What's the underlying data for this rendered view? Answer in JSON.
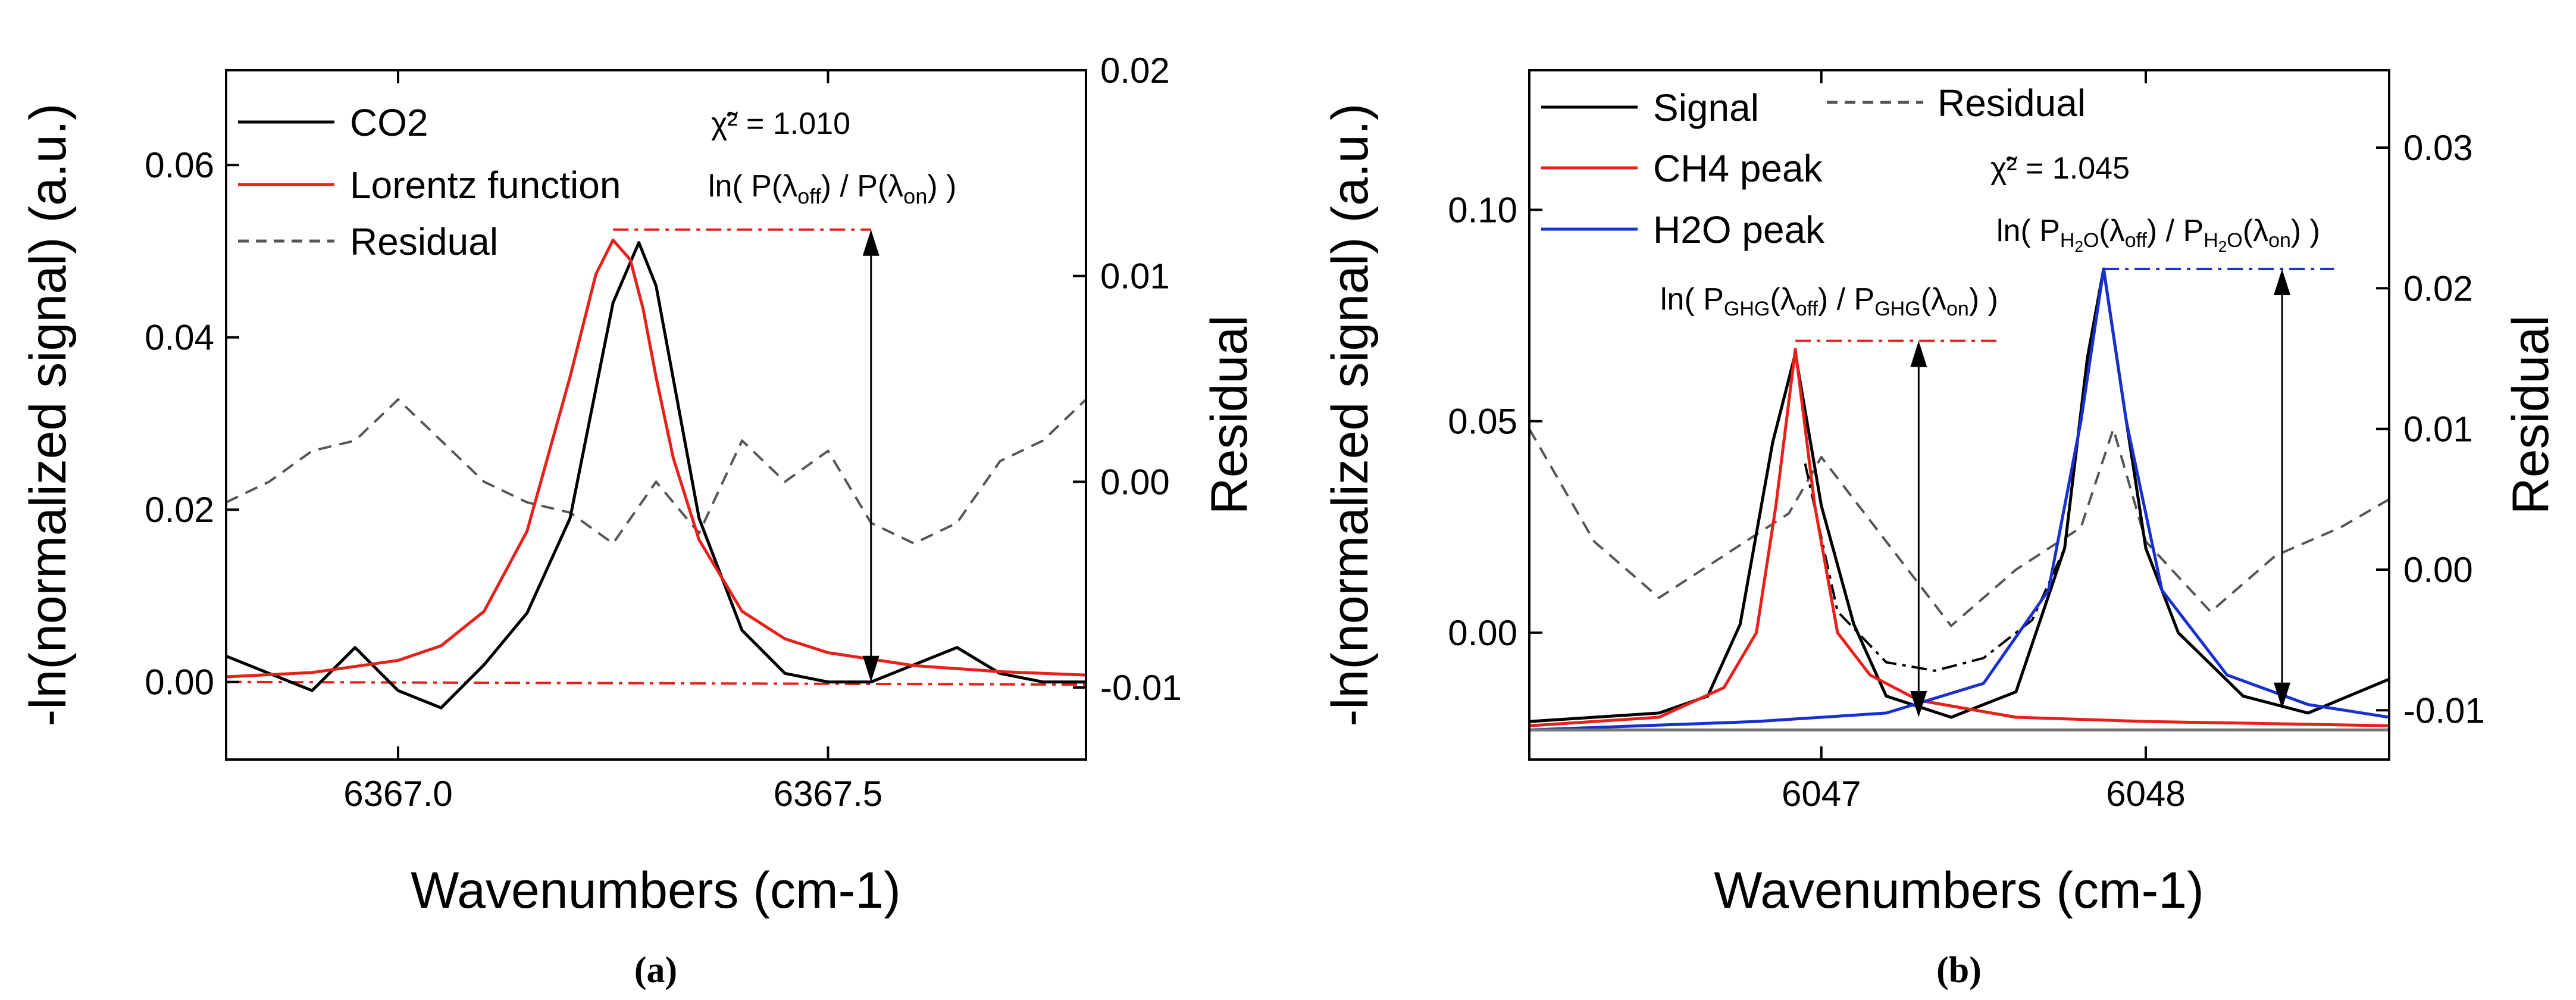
{
  "chart_data": [
    {
      "id": "a",
      "type": "line",
      "caption": "(a)",
      "xlabel": "Wavenumbers (cm-1)",
      "ylabel": "-ln(normalized signal) (a.u.)",
      "y2label": "Residual",
      "xlim": [
        6366.8,
        6367.8
      ],
      "ylim": [
        -0.009,
        0.071
      ],
      "y2lim": [
        -0.0135,
        0.02
      ],
      "xticks": [
        6367.0,
        6367.5
      ],
      "xtick_labels": [
        "6367.0",
        "6367.5"
      ],
      "yticks": [
        0.0,
        0.02,
        0.04,
        0.06
      ],
      "ytick_labels": [
        "0.00",
        "0.02",
        "0.04",
        "0.06"
      ],
      "y2ticks": [
        -0.01,
        0.0,
        0.01,
        0.02
      ],
      "y2tick_labels": [
        "-0.01",
        "0.00",
        "0.01",
        "0.02"
      ],
      "grid": false,
      "legend": [
        "CO2",
        "Lorentz function",
        "Residual"
      ],
      "series": [
        {
          "name": "CO2",
          "color": "#000000",
          "style": "solid",
          "axis": "left",
          "x": [
            6366.8,
            6366.85,
            6366.9,
            6366.95,
            6367.0,
            6367.05,
            6367.1,
            6367.15,
            6367.2,
            6367.25,
            6367.28,
            6367.3,
            6367.35,
            6367.4,
            6367.45,
            6367.5,
            6367.55,
            6367.6,
            6367.65,
            6367.7,
            6367.75,
            6367.8
          ],
          "y": [
            0.003,
            0.001,
            -0.001,
            0.004,
            -0.001,
            -0.003,
            0.002,
            0.008,
            0.019,
            0.044,
            0.051,
            0.046,
            0.019,
            0.006,
            0.001,
            0.0,
            0.0,
            0.002,
            0.004,
            0.001,
            0.0,
            0.0
          ]
        },
        {
          "name": "Lorentz function",
          "color": "#e8201a",
          "style": "solid",
          "axis": "left",
          "x": [
            6366.8,
            6366.9,
            6367.0,
            6367.05,
            6367.1,
            6367.15,
            6367.2,
            6367.23,
            6367.25,
            6367.27,
            6367.285,
            6367.3,
            6367.32,
            6367.35,
            6367.4,
            6367.45,
            6367.5,
            6367.6,
            6367.7,
            6367.8
          ],
          "y": [
            0.0006,
            0.0011,
            0.0025,
            0.0042,
            0.0082,
            0.0175,
            0.0354,
            0.0473,
            0.0513,
            0.049,
            0.0433,
            0.0354,
            0.026,
            0.0165,
            0.0082,
            0.005,
            0.0034,
            0.0019,
            0.0012,
            0.0008
          ]
        },
        {
          "name": "Residual",
          "color": "#555555",
          "style": "dashed",
          "axis": "right",
          "x": [
            6366.8,
            6366.85,
            6366.9,
            6366.95,
            6367.0,
            6367.05,
            6367.1,
            6367.15,
            6367.2,
            6367.25,
            6367.3,
            6367.35,
            6367.4,
            6367.45,
            6367.5,
            6367.55,
            6367.6,
            6367.65,
            6367.7,
            6367.75,
            6367.8
          ],
          "y": [
            -0.001,
            0.0,
            0.0015,
            0.002,
            0.004,
            0.002,
            0.0,
            -0.001,
            -0.0015,
            -0.003,
            0.0,
            -0.0025,
            0.002,
            0.0,
            0.0015,
            -0.002,
            -0.003,
            -0.002,
            0.001,
            0.002,
            0.004
          ]
        },
        {
          "name": "Baseline",
          "color": "#e8201a",
          "style": "dashdot",
          "axis": "left",
          "x": [
            6366.8,
            6367.8
          ],
          "y": [
            0.0,
            -0.0003
          ]
        }
      ],
      "annotations": {
        "chi_label": "χ̃² = 1.010",
        "ratio_label": "ln( P(λoff) / P(λon) )",
        "ratio_text": {
          "pre": "ln( P(λ",
          "sub1": "off",
          "mid": ") / P(λ",
          "sub2": "on",
          "post": ") )"
        },
        "arrow": {
          "x": 6367.55,
          "y_top": 0.0525,
          "y_bottom": 0.0,
          "level_x": [
            6367.25,
            6367.55
          ]
        }
      }
    },
    {
      "id": "b",
      "type": "line",
      "caption": "(b)",
      "xlabel": "Wavenumbers (cm-1)",
      "ylabel": "-ln(normalized signal) (a.u.)",
      "y2label": "Residual",
      "xlim": [
        6046.1,
        6048.75
      ],
      "ylim": [
        -0.03,
        0.133
      ],
      "y2lim": [
        -0.0135,
        0.0355
      ],
      "xticks": [
        6047,
        6048
      ],
      "xtick_labels": [
        "6047",
        "6048"
      ],
      "yticks": [
        0.0,
        0.05,
        0.1
      ],
      "ytick_labels": [
        "0.00",
        "0.05",
        "0.10"
      ],
      "y2ticks": [
        -0.01,
        0.0,
        0.01,
        0.02,
        0.03
      ],
      "y2tick_labels": [
        "-0.01",
        "0.00",
        "0.01",
        "0.02",
        "0.03"
      ],
      "grid": false,
      "legend": [
        "Signal",
        "Residual",
        "CH4 peak",
        "H2O peak"
      ],
      "series": [
        {
          "name": "Signal",
          "color": "#000000",
          "style": "solid",
          "axis": "left",
          "x": [
            6046.1,
            6046.3,
            6046.5,
            6046.65,
            6046.75,
            6046.85,
            6046.92,
            6047.0,
            6047.1,
            6047.2,
            6047.4,
            6047.6,
            6047.75,
            6047.82,
            6047.87,
            6047.93,
            6048.0,
            6048.1,
            6048.3,
            6048.5,
            6048.75
          ],
          "y": [
            -0.021,
            -0.02,
            -0.019,
            -0.015,
            0.002,
            0.045,
            0.066,
            0.03,
            0.002,
            -0.015,
            -0.02,
            -0.014,
            0.02,
            0.065,
            0.086,
            0.055,
            0.02,
            0.0,
            -0.015,
            -0.019,
            -0.011
          ]
        },
        {
          "name": "CH4 peak",
          "color": "#e8201a",
          "style": "solid",
          "axis": "left",
          "x": [
            6046.1,
            6046.5,
            6046.7,
            6046.8,
            6046.86,
            6046.92,
            6046.98,
            6047.05,
            6047.15,
            6047.3,
            6047.6,
            6048.0,
            6048.75
          ],
          "y": [
            -0.022,
            -0.02,
            -0.013,
            0.0,
            0.03,
            0.067,
            0.03,
            0.0,
            -0.01,
            -0.016,
            -0.02,
            -0.021,
            -0.022
          ]
        },
        {
          "name": "H2O peak",
          "color": "#1a2fd0",
          "style": "solid",
          "axis": "left",
          "x": [
            6046.1,
            6046.8,
            6047.2,
            6047.5,
            6047.7,
            6047.8,
            6047.87,
            6047.94,
            6048.05,
            6048.25,
            6048.5,
            6048.75
          ],
          "y": [
            -0.023,
            -0.021,
            -0.019,
            -0.012,
            0.01,
            0.05,
            0.086,
            0.05,
            0.01,
            -0.01,
            -0.017,
            -0.02
          ]
        },
        {
          "name": "Residual",
          "color": "#555555",
          "style": "dashed",
          "axis": "right",
          "x": [
            6046.1,
            6046.3,
            6046.5,
            6046.7,
            6046.9,
            6047.0,
            6047.2,
            6047.4,
            6047.6,
            6047.8,
            6047.9,
            6048.0,
            6048.2,
            6048.4,
            6048.6,
            6048.75
          ],
          "y": [
            0.01,
            0.002,
            -0.002,
            0.001,
            0.004,
            0.008,
            0.002,
            -0.004,
            0.0,
            0.003,
            0.01,
            0.002,
            -0.003,
            0.001,
            0.003,
            0.005
          ]
        },
        {
          "name": "Sum fit",
          "color": "#000000",
          "style": "dashdot",
          "axis": "left",
          "x": [
            6046.95,
            6047.05,
            6047.2,
            6047.35,
            6047.5,
            6047.65,
            6047.75
          ],
          "y": [
            0.04,
            0.005,
            -0.007,
            -0.009,
            -0.006,
            0.003,
            0.02
          ]
        },
        {
          "name": "Baseline",
          "color": "#777777",
          "style": "solid",
          "axis": "left",
          "x": [
            6046.1,
            6048.75
          ],
          "y": [
            -0.023,
            -0.023
          ]
        }
      ],
      "annotations": {
        "chi_label": "χ̃² = 1.045",
        "ch4_ratio_label": "ln( PGHG(λoff) / PGHG(λon) )",
        "ch4_ratio_text": {
          "pre": "ln( P",
          "subA": "GHG",
          "a2": "(λ",
          "sub1": "off",
          "mid": ") / P",
          "subB": "GHG",
          "b2": "(λ",
          "sub2": "on",
          "post": ") )"
        },
        "h2o_ratio_label": "ln( PH2O(λoff) / PH2O(λon) )",
        "h2o_ratio_text": {
          "pre": "ln( P",
          "subA": "H",
          "subA2": "2",
          "subA3": "O",
          "a2": "(λ",
          "sub1": "off",
          "mid": ") / P",
          "subB": "H",
          "subB2": "2",
          "subB3": "O",
          "b2": "(λ",
          "sub2": "on",
          "post": ") )"
        },
        "ch4_arrow": {
          "x": 6047.3,
          "y_top": 0.069,
          "y_bottom": -0.02,
          "level_x": [
            6046.92,
            6047.55
          ]
        },
        "h2o_arrow": {
          "x": 6048.42,
          "y_top": 0.086,
          "y_bottom": -0.018,
          "level_x": [
            6047.87,
            6048.58
          ]
        }
      }
    }
  ]
}
